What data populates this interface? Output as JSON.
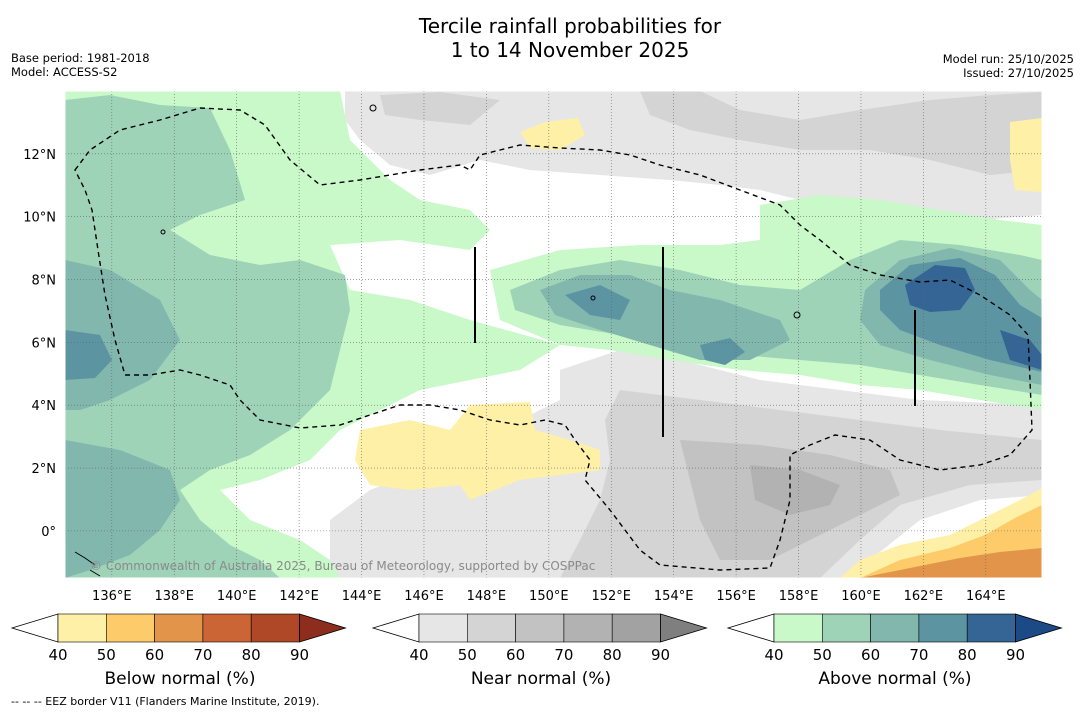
{
  "title": {
    "line1": "Tercile rainfall probabilities for",
    "line2": "1 to 14 November 2025"
  },
  "meta": {
    "base_period": "Base period: 1981-2018",
    "model": "Model: ACCESS-S2",
    "model_run": "Model run: 25/10/2025",
    "issued": "Issued: 27/10/2025"
  },
  "map": {
    "lon_range": [
      134.5,
      165.8
    ],
    "lat_range": [
      -1.5,
      14
    ],
    "lon_ticks": [
      136,
      138,
      140,
      142,
      144,
      146,
      148,
      150,
      152,
      154,
      156,
      158,
      160,
      162,
      164
    ],
    "lon_labels": [
      "136°E",
      "138°E",
      "140°E",
      "142°E",
      "144°E",
      "146°E",
      "148°E",
      "150°E",
      "152°E",
      "154°E",
      "156°E",
      "158°E",
      "160°E",
      "162°E",
      "164°E"
    ],
    "lat_ticks": [
      12,
      10,
      8,
      6,
      4,
      2,
      0
    ],
    "lat_labels": [
      "12°N",
      "10°N",
      "8°N",
      "6°N",
      "4°N",
      "2°N",
      "0°"
    ],
    "copyright": "© Commonwealth of Australia 2025, Bureau of Meteorology, supported by COSPPac"
  },
  "colorbars": [
    {
      "label": "Below normal (%)",
      "ticks": [
        "40",
        "50",
        "60",
        "70",
        "80",
        "90"
      ],
      "colors": [
        "#ffffff",
        "#fef0a6",
        "#fdcb6a",
        "#e1944a",
        "#cc6536",
        "#ae4826",
        "#8c2d1d"
      ]
    },
    {
      "label": "Near normal (%)",
      "ticks": [
        "40",
        "50",
        "60",
        "70",
        "80",
        "90"
      ],
      "colors": [
        "#ffffff",
        "#e6e6e6",
        "#d4d4d4",
        "#c2c2c2",
        "#b2b2b2",
        "#a2a2a2",
        "#7f7f7f"
      ]
    },
    {
      "label": "Above normal (%)",
      "ticks": [
        "40",
        "50",
        "60",
        "70",
        "80",
        "90"
      ],
      "colors": [
        "#ffffff",
        "#c9f8c9",
        "#9ed3b8",
        "#82b7ad",
        "#5c94a2",
        "#346595",
        "#1c4a87"
      ]
    }
  ],
  "footer": "-- -- -- EEZ border V11 (Flanders Marine Institute, 2019)."
}
